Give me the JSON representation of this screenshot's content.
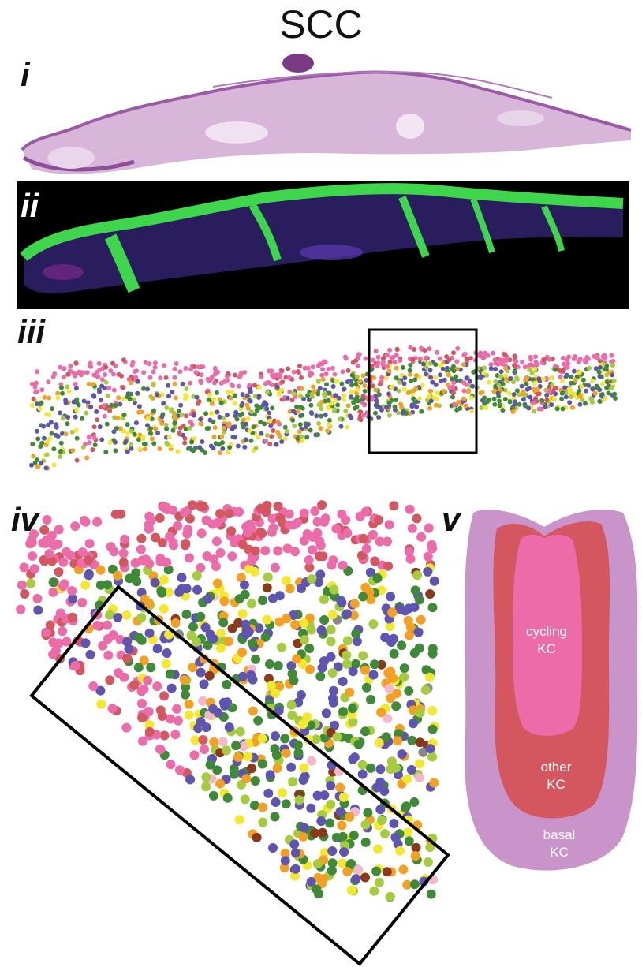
{
  "title": "SCC",
  "panels": {
    "i": "i",
    "ii": "ii",
    "iii": "iii",
    "iv": "iv",
    "v": "v"
  },
  "regions": {
    "cycling": "cycling\nKC",
    "other": "other\nKC",
    "basal": "basal\nKC"
  },
  "colors": {
    "he_stain": "#c8a2cc",
    "he_dark": "#8e4f9a",
    "fluor_bg": "#000000",
    "fluor_green": "#3ed64a",
    "fluor_blue": "#4a3ca8",
    "cycling_kc": "#ec6ba8",
    "other_kc": "#d4565f",
    "basal_kc": "#c894c9",
    "spot_green": "#3e8a36",
    "spot_lime": "#a4cc3c",
    "spot_yellow": "#f4e82c",
    "spot_orange": "#f5a020",
    "spot_purple": "#5e54b2",
    "spot_brown": "#8a3a1a",
    "spot_lightpink": "#f4b8cc",
    "spot_grey": "#888888"
  }
}
